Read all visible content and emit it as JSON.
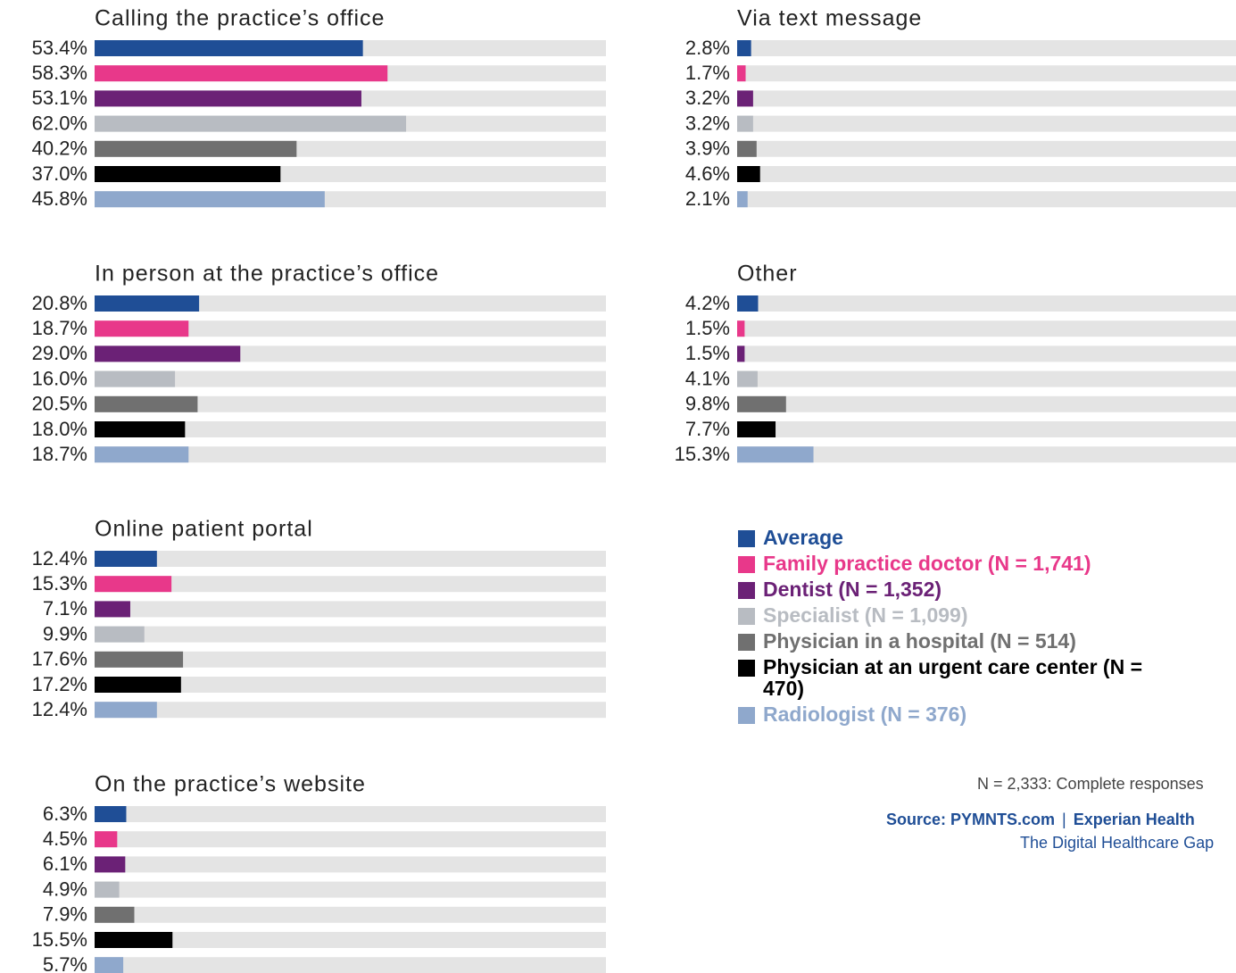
{
  "chart_data": [
    {
      "type": "bar",
      "orientation": "horizontal",
      "title": "Calling the practice’s office",
      "values": [
        53.4,
        58.3,
        53.1,
        62.0,
        40.2,
        37.0,
        45.8
      ],
      "value_labels": [
        "53.4%",
        "58.3%",
        "53.1%",
        "62.0%",
        "40.2%",
        "37.0%",
        "45.8%"
      ],
      "xlim": [
        0,
        100
      ]
    },
    {
      "type": "bar",
      "orientation": "horizontal",
      "title": "In person at the practice’s office",
      "values": [
        20.8,
        18.7,
        29.0,
        16.0,
        20.5,
        18.0,
        18.7
      ],
      "value_labels": [
        "20.8%",
        "18.7%",
        "29.0%",
        "16.0%",
        "20.5%",
        "18.0%",
        "18.7%"
      ],
      "xlim": [
        0,
        100
      ]
    },
    {
      "type": "bar",
      "orientation": "horizontal",
      "title": "Online patient portal",
      "values": [
        12.4,
        15.3,
        7.1,
        9.9,
        17.6,
        17.2,
        12.4
      ],
      "value_labels": [
        "12.4%",
        "15.3%",
        "7.1%",
        "9.9%",
        "17.6%",
        "17.2%",
        "12.4%"
      ],
      "xlim": [
        0,
        100
      ]
    },
    {
      "type": "bar",
      "orientation": "horizontal",
      "title": "On the practice’s website",
      "values": [
        6.3,
        4.5,
        6.1,
        4.9,
        7.9,
        15.5,
        5.7
      ],
      "value_labels": [
        "6.3%",
        "4.5%",
        "6.1%",
        "4.9%",
        "7.9%",
        "15.5%",
        "5.7%"
      ],
      "xlim": [
        0,
        100
      ]
    },
    {
      "type": "bar",
      "orientation": "horizontal",
      "title": "Via text message",
      "values": [
        2.8,
        1.7,
        3.2,
        3.2,
        3.9,
        4.6,
        2.1
      ],
      "value_labels": [
        "2.8%",
        "1.7%",
        "3.2%",
        "3.2%",
        "3.9%",
        "4.6%",
        "2.1%"
      ],
      "xlim": [
        0,
        100
      ]
    },
    {
      "type": "bar",
      "orientation": "horizontal",
      "title": "Other",
      "values": [
        4.2,
        1.5,
        1.5,
        4.1,
        9.8,
        7.7,
        15.3
      ],
      "value_labels": [
        "4.2%",
        "1.5%",
        "1.5%",
        "4.1%",
        "9.8%",
        "7.7%",
        "15.3%"
      ],
      "xlim": [
        0,
        100
      ]
    }
  ],
  "legend": {
    "items": [
      {
        "name": "Average",
        "color": "#1f4e96"
      },
      {
        "name": "Family practice doctor (N = 1,741)",
        "color": "#e8388a"
      },
      {
        "name": "Dentist (N = 1,352)",
        "color": "#6b2176"
      },
      {
        "name": "Specialist (N = 1,099)",
        "color": "#b8bcc2"
      },
      {
        "name": "Physician in a hospital (N = 514)",
        "color": "#707070"
      },
      {
        "name": "Physician at an urgent care center (N = 470)",
        "color": "#000000"
      },
      {
        "name": "Radiologist (N = 376)",
        "color": "#8fa8cc"
      }
    ]
  },
  "note": "N = 2,333: Complete responses",
  "source": {
    "label": "Source: PYMNTS.com",
    "separator": "|",
    "partner": "Experian Health",
    "report": "The Digital Healthcare Gap"
  }
}
